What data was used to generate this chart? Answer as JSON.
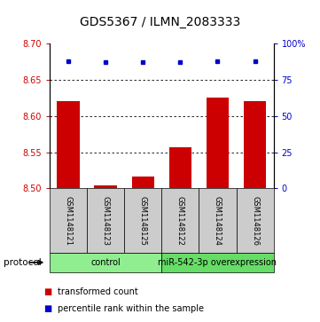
{
  "title": "GDS5367 / ILMN_2083333",
  "samples": [
    "GSM1148121",
    "GSM1148123",
    "GSM1148125",
    "GSM1148122",
    "GSM1148124",
    "GSM1148126"
  ],
  "bar_values": [
    8.621,
    8.504,
    8.516,
    8.557,
    8.625,
    8.621
  ],
  "percentile_values": [
    88,
    87,
    87,
    87,
    88,
    88
  ],
  "ylim_left": [
    8.5,
    8.7
  ],
  "ylim_right": [
    0,
    100
  ],
  "yticks_left": [
    8.5,
    8.55,
    8.6,
    8.65,
    8.7
  ],
  "yticks_right": [
    0,
    25,
    50,
    75,
    100
  ],
  "ytick_labels_right": [
    "0",
    "25",
    "50",
    "75",
    "100%"
  ],
  "gridlines": [
    8.55,
    8.6,
    8.65
  ],
  "bar_color": "#cc0000",
  "dot_color": "#0000cc",
  "bar_width": 0.6,
  "bar_base": 8.5,
  "protocol_groups": [
    {
      "label": "control",
      "start": 0,
      "end": 3,
      "color": "#90EE90"
    },
    {
      "label": "miR-542-3p overexpression",
      "start": 3,
      "end": 6,
      "color": "#66DD66"
    }
  ],
  "protocol_label": "protocol",
  "legend_items": [
    {
      "label": "transformed count",
      "color": "#cc0000"
    },
    {
      "label": "percentile rank within the sample",
      "color": "#0000cc"
    }
  ],
  "left_tick_color": "#cc0000",
  "right_tick_color": "#0000cc",
  "sample_box_color": "#cccccc",
  "title_fontsize": 10,
  "tick_fontsize": 7,
  "sample_fontsize": 6,
  "protocol_fontsize": 7,
  "legend_fontsize": 7
}
